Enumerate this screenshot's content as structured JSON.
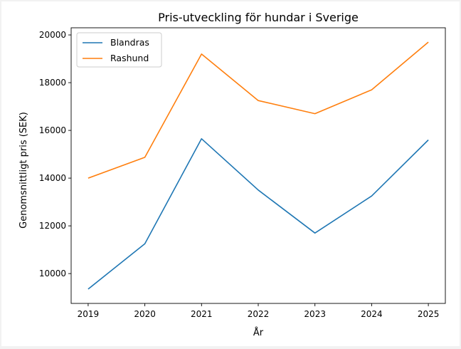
{
  "chart_data": {
    "type": "line",
    "title": "Pris-utveckling för hundar i Sverige",
    "xlabel": "År",
    "ylabel": "Genomsnittligt pris (SEK)",
    "x": [
      2019,
      2020,
      2021,
      2022,
      2023,
      2024,
      2025
    ],
    "x_ticks": [
      "2019",
      "2020",
      "2021",
      "2022",
      "2023",
      "2024",
      "2025"
    ],
    "y_ticks": [
      "10000",
      "12000",
      "14000",
      "16000",
      "18000",
      "20000"
    ],
    "ylim": [
      8750,
      20300
    ],
    "xlim": [
      2018.7,
      2025.3
    ],
    "grid": false,
    "legend_position": "upper-left",
    "series": [
      {
        "name": "Blandras",
        "color": "#1f77b4",
        "values": [
          9350,
          11250,
          15650,
          13500,
          11700,
          13250,
          15600
        ]
      },
      {
        "name": "Rashund",
        "color": "#ff7f0e",
        "values": [
          14000,
          14870,
          19200,
          17250,
          16700,
          17700,
          19700
        ]
      }
    ]
  }
}
